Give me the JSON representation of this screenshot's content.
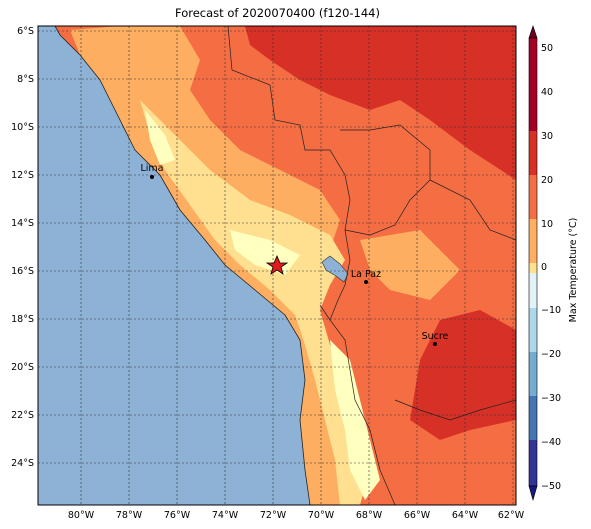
{
  "title": "Forecast of 2020070400 (f120-144)",
  "colorbar": {
    "label": "Max Temperature (°C)",
    "ticks": [
      "50",
      "40",
      "30",
      "20",
      "10",
      "0",
      "−10",
      "−20",
      "−30",
      "−40",
      "−50"
    ],
    "colors": [
      "#6b0020",
      "#a50026",
      "#d73027",
      "#f46d43",
      "#fdae61",
      "#fee090",
      "#ffffbf",
      "#e0f3f8",
      "#abd9e9",
      "#74add1",
      "#4575b4",
      "#313695",
      "#1a1a7e"
    ]
  },
  "axes": {
    "lat_labels": [
      "6°S",
      "8°S",
      "10°S",
      "12°S",
      "14°S",
      "16°S",
      "18°S",
      "20°S",
      "22°S",
      "24°S"
    ],
    "lon_labels": [
      "80°W",
      "78°W",
      "76°W",
      "74°W",
      "72°W",
      "70°W",
      "68°W",
      "66°W",
      "64°W",
      "62°W"
    ]
  },
  "cities": [
    {
      "name": "Lima",
      "lon": -77.03,
      "lat": -12.05
    },
    {
      "name": "La Paz",
      "lon": -68.15,
      "lat": -16.5
    },
    {
      "name": "Sucre",
      "lon": -65.26,
      "lat": -19.03
    }
  ],
  "marker": {
    "name": "star",
    "lon": -71.9,
    "lat": -15.8,
    "color": "#e31a1c"
  },
  "colors": {
    "ocean": "#8eb2d6",
    "land_hot": "#d73027",
    "land_warm": "#f46d43",
    "land_mild": "#fdae61",
    "land_cool": "#fee090",
    "land_cold": "#ffffbf"
  }
}
